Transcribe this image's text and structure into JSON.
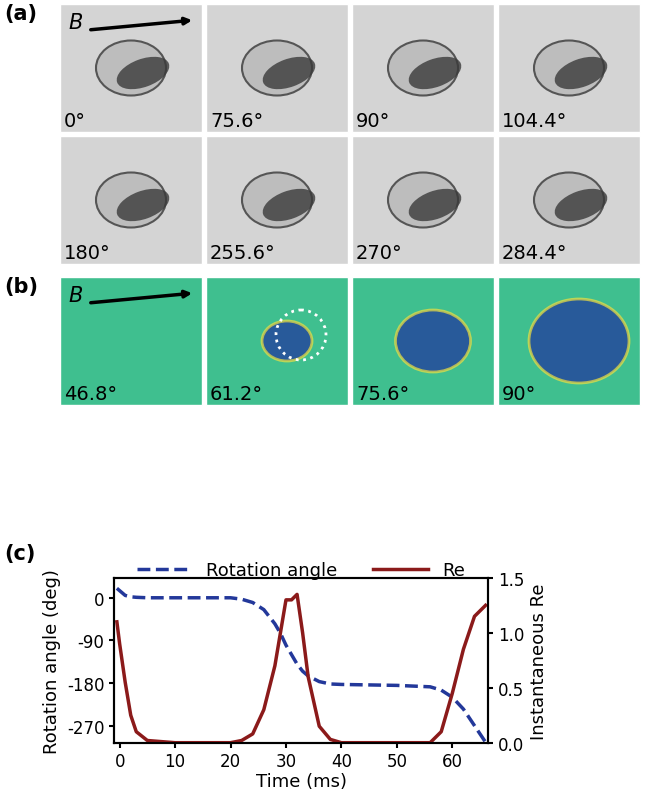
{
  "panel_a": {
    "label": "(a)",
    "field_label": "B",
    "frames": [
      "0°",
      "75.6°",
      "90°",
      "104.4°",
      "180°",
      "255.6°",
      "270°",
      "284.4°"
    ]
  },
  "panel_b": {
    "label": "(b)",
    "field_label": "B",
    "frames": [
      "46.8°",
      "61.2°",
      "75.6°",
      "90°"
    ]
  },
  "chart_data": {
    "label": "(c)",
    "type": "line",
    "x_label": "Time (ms)",
    "y_label": "Rotation angle (deg)",
    "y2_label": "Instantaneous Re",
    "x": [
      -0.5,
      0,
      1,
      2,
      3,
      5,
      10,
      20,
      22,
      24,
      26,
      28,
      29,
      30,
      31,
      32,
      33,
      34,
      36,
      38,
      40,
      50,
      56,
      58,
      60,
      62,
      64,
      66
    ],
    "series": [
      {
        "name": "Rotation angle",
        "color": "#23389a",
        "line_style": "dashed",
        "values": [
          20,
          15,
          5,
          2,
          1,
          0,
          0,
          0,
          -3,
          -10,
          -25,
          -55,
          -75,
          -100,
          -120,
          -140,
          -155,
          -165,
          -177,
          -182,
          -183,
          -185,
          -188,
          -195,
          -210,
          -235,
          -270,
          -305
        ]
      },
      {
        "name": "Re",
        "color": "#8b1a1a",
        "line_style": "solid",
        "axis": "y2",
        "values": [
          1.1,
          0.9,
          0.55,
          0.25,
          0.1,
          0.02,
          0,
          0,
          0.02,
          0.08,
          0.3,
          0.7,
          1.0,
          1.3,
          1.3,
          1.35,
          1.0,
          0.6,
          0.15,
          0.03,
          0,
          0,
          0,
          0.1,
          0.45,
          0.85,
          1.15,
          1.25
        ]
      }
    ],
    "xlim": [
      -1,
      66.5
    ],
    "xticks": [
      0,
      10,
      20,
      30,
      40,
      50,
      60
    ],
    "ylim": [
      -306,
      42
    ],
    "yticks": [
      0,
      -90,
      -180,
      -270
    ],
    "y2lim": [
      0.0,
      1.5
    ],
    "y2ticks": [
      0.0,
      0.5,
      1.0,
      1.5
    ],
    "legend": "upper center"
  }
}
